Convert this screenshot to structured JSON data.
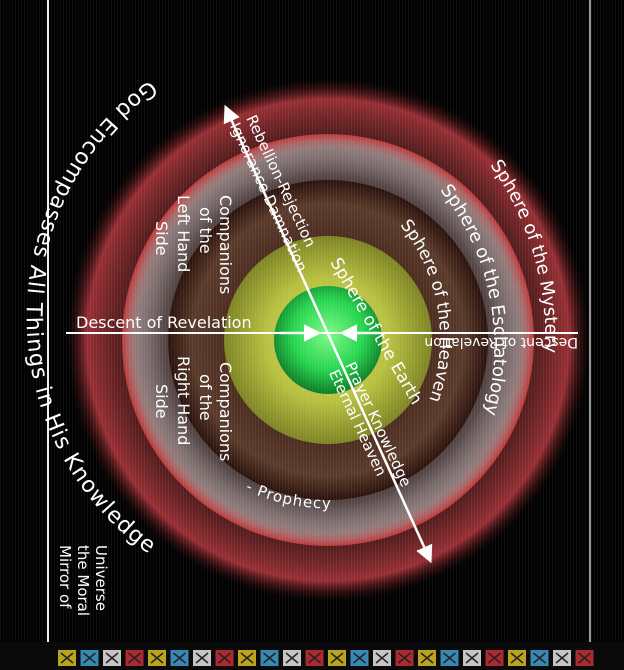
{
  "title_arc": "God Encompasses All Things in His Knowledge",
  "corner_label": [
    "Mirror of",
    "the Moral",
    "Universe"
  ],
  "spheres": {
    "mystery": [
      "Sphere of",
      "the Mystery"
    ],
    "eschatology": [
      "Sphere of",
      "the Eschatology"
    ],
    "heaven": [
      "Sphere of",
      "the Heaven"
    ],
    "earth": "Sphere of the Earth"
  },
  "left_side": [
    "Companions",
    "of the",
    "Left Hand",
    "Side"
  ],
  "right_side": [
    "Companions",
    "of the",
    "Right Hand",
    "Side"
  ],
  "upper_arrow": [
    "Rebellion-Rejection",
    "Ignorance Damnation"
  ],
  "lower_arrow": [
    "Prayer Knowledge",
    "Eternal Heaven"
  ],
  "descent_left": "Descent of Revelation",
  "descent_right": "Descent of Revelation",
  "prophecy": "- Prophecy",
  "colors": {
    "outer_ring": "#d8343c",
    "inner_ring": "#b83a2a",
    "earth_sphere": "#c8d04a",
    "core": "#2ee05a",
    "background": "#000000"
  },
  "glyph_strip": {
    "icon": "decorative-glyph-tiles",
    "colors": [
      "#d8c020",
      "#3f9fd0",
      "#e6e6e6",
      "#c8303a",
      "#d8c020",
      "#3f9fd0",
      "#e6e6e6",
      "#c8303a",
      "#d8c020",
      "#3f9fd0",
      "#e6e6e6",
      "#c8303a",
      "#d8c020",
      "#3f9fd0",
      "#e6e6e6",
      "#c8303a",
      "#d8c020",
      "#3f9fd0",
      "#e6e6e6",
      "#c8303a",
      "#d8c020",
      "#3f9fd0",
      "#e6e6e6",
      "#c8303a"
    ]
  }
}
